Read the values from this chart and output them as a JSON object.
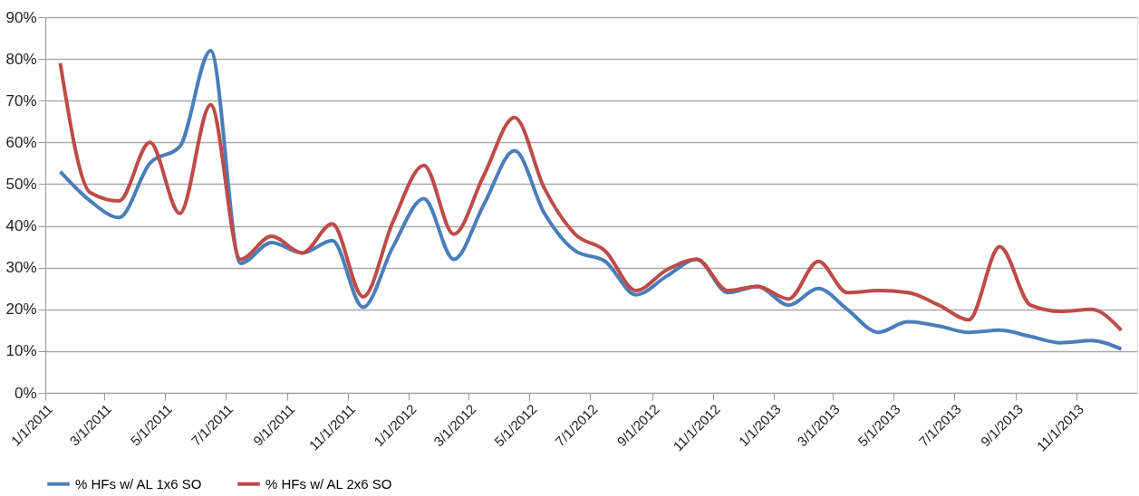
{
  "chart_data": {
    "type": "line",
    "x": [
      "2011-01-16",
      "2011-02-15",
      "2011-03-16",
      "2011-04-16",
      "2011-05-16",
      "2011-06-16",
      "2011-07-16",
      "2011-08-16",
      "2011-09-16",
      "2011-10-16",
      "2011-11-16",
      "2011-12-16",
      "2012-01-16",
      "2012-02-15",
      "2012-03-16",
      "2012-04-16",
      "2012-05-16",
      "2012-06-16",
      "2012-07-16",
      "2012-08-16",
      "2012-09-16",
      "2012-10-16",
      "2012-11-16",
      "2012-12-16",
      "2013-01-16",
      "2013-02-15",
      "2013-03-16",
      "2013-04-16",
      "2013-05-16",
      "2013-06-16",
      "2013-07-16",
      "2013-08-16",
      "2013-09-16",
      "2013-10-16",
      "2013-11-16",
      "2013-12-16"
    ],
    "series": [
      {
        "name": "% HFs w/ AL 1x6 SO",
        "color": "#4a7ebb",
        "values": [
          53,
          46,
          42,
          55,
          59,
          82,
          31,
          36,
          33.5,
          36.5,
          20.5,
          35,
          46.5,
          32,
          45,
          58,
          43,
          34,
          31.5,
          23.5,
          28,
          32,
          24,
          25.5,
          21,
          25,
          20,
          14.5,
          17,
          16,
          14.5,
          15,
          13.5,
          12,
          12.5,
          10.5
        ]
      },
      {
        "name": "% HFs w/ AL 2x6 SO",
        "color": "#be4b48",
        "values": [
          79,
          48,
          46,
          60,
          43,
          69,
          32,
          37.5,
          33.5,
          40.5,
          23,
          41,
          54.5,
          38,
          52,
          66,
          49,
          38,
          34,
          24.5,
          29.5,
          32,
          24.5,
          25.5,
          22.5,
          31.5,
          24,
          24.5,
          24,
          21,
          17.5,
          35,
          21,
          19.5,
          20,
          15
        ]
      }
    ],
    "xlim": [
      "2011-01-01",
      "2014-01-01"
    ],
    "xticks": [
      {
        "value": "2011-01-01",
        "label": "1/1/2011"
      },
      {
        "value": "2011-03-01",
        "label": "3/1/2011"
      },
      {
        "value": "2011-05-01",
        "label": "5/1/2011"
      },
      {
        "value": "2011-07-01",
        "label": "7/1/2011"
      },
      {
        "value": "2011-09-01",
        "label": "9/1/2011"
      },
      {
        "value": "2011-11-01",
        "label": "11/1/2011"
      },
      {
        "value": "2012-01-01",
        "label": "1/1/2012"
      },
      {
        "value": "2012-03-01",
        "label": "3/1/2012"
      },
      {
        "value": "2012-05-01",
        "label": "5/1/2012"
      },
      {
        "value": "2012-07-01",
        "label": "7/1/2012"
      },
      {
        "value": "2012-09-01",
        "label": "9/1/2012"
      },
      {
        "value": "2012-11-01",
        "label": "11/1/2012"
      },
      {
        "value": "2013-01-01",
        "label": "1/1/2013"
      },
      {
        "value": "2013-03-01",
        "label": "3/1/2013"
      },
      {
        "value": "2013-05-01",
        "label": "5/1/2013"
      },
      {
        "value": "2013-07-01",
        "label": "7/1/2013"
      },
      {
        "value": "2013-09-01",
        "label": "9/1/2013"
      },
      {
        "value": "2013-11-01",
        "label": "11/1/2013"
      }
    ],
    "ylim": [
      0,
      90
    ],
    "yticks": [
      {
        "value": 0,
        "label": "0%"
      },
      {
        "value": 10,
        "label": "10%"
      },
      {
        "value": 20,
        "label": "20%"
      },
      {
        "value": 30,
        "label": "30%"
      },
      {
        "value": 40,
        "label": "40%"
      },
      {
        "value": 50,
        "label": "50%"
      },
      {
        "value": 60,
        "label": "60%"
      },
      {
        "value": 70,
        "label": "70%"
      },
      {
        "value": 80,
        "label": "80%"
      },
      {
        "value": 90,
        "label": "90%"
      }
    ],
    "grid": "y",
    "legend": "bottom",
    "marker": "none",
    "line_style": "solid"
  }
}
